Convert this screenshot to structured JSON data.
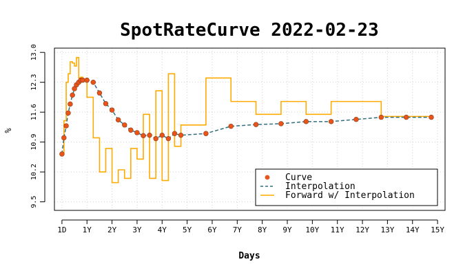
{
  "chart_data": {
    "type": "line",
    "title": "SpotRateCurve 2022-02-23",
    "xlabel": "Days",
    "ylabel": "%",
    "x_unit": "years",
    "xlim": [
      -0.3,
      15.3
    ],
    "ylim": [
      9.3,
      13.1
    ],
    "x_ticks": [
      {
        "value": 0,
        "label": "1D"
      },
      {
        "value": 1,
        "label": "1Y"
      },
      {
        "value": 2,
        "label": "2Y"
      },
      {
        "value": 3,
        "label": "3Y"
      },
      {
        "value": 4,
        "label": "4Y"
      },
      {
        "value": 5,
        "label": "5Y"
      },
      {
        "value": 6,
        "label": "6Y"
      },
      {
        "value": 7,
        "label": "7Y"
      },
      {
        "value": 8,
        "label": "8Y"
      },
      {
        "value": 9,
        "label": "9Y"
      },
      {
        "value": 10,
        "label": "10Y"
      },
      {
        "value": 11,
        "label": "11Y"
      },
      {
        "value": 12,
        "label": "12Y"
      },
      {
        "value": 13,
        "label": "13Y"
      },
      {
        "value": 14,
        "label": "14Y"
      },
      {
        "value": 15,
        "label": "15Y"
      }
    ],
    "y_ticks": [
      {
        "value": 9.5,
        "label": "9.5"
      },
      {
        "value": 10.2,
        "label": "10.2"
      },
      {
        "value": 10.9,
        "label": "10.9"
      },
      {
        "value": 11.6,
        "label": "11.6"
      },
      {
        "value": 12.3,
        "label": "12.3"
      },
      {
        "value": 13.0,
        "label": "13.0"
      }
    ],
    "grid": true,
    "legend_position": "bottom-right",
    "legend": [
      {
        "label": "Curve",
        "kind": "point",
        "color": "#e8541a"
      },
      {
        "label": "Interpolation",
        "kind": "dash",
        "color": "#2f6f7e"
      },
      {
        "label": "Forward w/ Interpolation",
        "kind": "line",
        "color": "#ffaa00"
      }
    ],
    "series": [
      {
        "name": "Curve",
        "kind": "points",
        "color": "#e8541a",
        "points": [
          [
            0.0,
            10.62
          ],
          [
            0.08,
            11.0
          ],
          [
            0.17,
            11.28
          ],
          [
            0.25,
            11.58
          ],
          [
            0.33,
            11.79
          ],
          [
            0.42,
            12.0
          ],
          [
            0.5,
            12.15
          ],
          [
            0.58,
            12.24
          ],
          [
            0.67,
            12.3
          ],
          [
            0.75,
            12.35
          ],
          [
            0.83,
            12.35
          ],
          [
            1.0,
            12.35
          ],
          [
            1.25,
            12.3
          ],
          [
            1.5,
            12.05
          ],
          [
            1.75,
            11.8
          ],
          [
            2.0,
            11.65
          ],
          [
            2.25,
            11.42
          ],
          [
            2.5,
            11.3
          ],
          [
            2.75,
            11.18
          ],
          [
            3.0,
            11.12
          ],
          [
            3.25,
            11.05
          ],
          [
            3.5,
            11.06
          ],
          [
            3.75,
            10.98
          ],
          [
            4.0,
            11.06
          ],
          [
            4.25,
            10.98
          ],
          [
            4.5,
            11.1
          ],
          [
            4.75,
            11.06
          ],
          [
            5.75,
            11.1
          ],
          [
            6.75,
            11.27
          ],
          [
            7.75,
            11.31
          ],
          [
            8.75,
            11.33
          ],
          [
            9.75,
            11.38
          ],
          [
            10.75,
            11.38
          ],
          [
            11.75,
            11.43
          ],
          [
            12.75,
            11.48
          ],
          [
            13.75,
            11.48
          ],
          [
            14.75,
            11.48
          ]
        ]
      },
      {
        "name": "Interpolation",
        "kind": "line",
        "color": "#2f6f7e",
        "points": [
          [
            0.0,
            10.62
          ],
          [
            0.08,
            11.0
          ],
          [
            0.17,
            11.28
          ],
          [
            0.25,
            11.58
          ],
          [
            0.33,
            11.79
          ],
          [
            0.42,
            12.0
          ],
          [
            0.5,
            12.15
          ],
          [
            0.58,
            12.24
          ],
          [
            0.67,
            12.3
          ],
          [
            0.75,
            12.35
          ],
          [
            0.83,
            12.35
          ],
          [
            1.0,
            12.35
          ],
          [
            1.25,
            12.3
          ],
          [
            1.5,
            12.05
          ],
          [
            1.75,
            11.8
          ],
          [
            2.0,
            11.65
          ],
          [
            2.25,
            11.42
          ],
          [
            2.5,
            11.3
          ],
          [
            2.75,
            11.18
          ],
          [
            3.0,
            11.12
          ],
          [
            3.25,
            11.05
          ],
          [
            3.5,
            11.06
          ],
          [
            3.75,
            10.98
          ],
          [
            4.0,
            11.06
          ],
          [
            4.25,
            10.98
          ],
          [
            4.5,
            11.1
          ],
          [
            4.75,
            11.06
          ],
          [
            5.75,
            11.1
          ],
          [
            6.75,
            11.27
          ],
          [
            7.75,
            11.31
          ],
          [
            8.75,
            11.33
          ],
          [
            9.75,
            11.38
          ],
          [
            10.75,
            11.38
          ],
          [
            11.75,
            11.43
          ],
          [
            12.75,
            11.48
          ],
          [
            13.75,
            11.48
          ],
          [
            14.75,
            11.48
          ]
        ]
      },
      {
        "name": "Forward w/ Interpolation",
        "kind": "step",
        "color": "#ffaa00",
        "points": [
          [
            0.0,
            10.62
          ],
          [
            0.08,
            11.4
          ],
          [
            0.17,
            12.3
          ],
          [
            0.25,
            12.5
          ],
          [
            0.33,
            12.78
          ],
          [
            0.42,
            12.75
          ],
          [
            0.5,
            12.68
          ],
          [
            0.58,
            12.88
          ],
          [
            0.67,
            12.4
          ],
          [
            0.75,
            12.42
          ],
          [
            0.83,
            12.35
          ],
          [
            1.0,
            11.95
          ],
          [
            1.25,
            11.0
          ],
          [
            1.5,
            10.2
          ],
          [
            1.75,
            10.75
          ],
          [
            2.0,
            9.95
          ],
          [
            2.25,
            10.25
          ],
          [
            2.5,
            10.05
          ],
          [
            2.75,
            10.75
          ],
          [
            3.0,
            10.5
          ],
          [
            3.25,
            11.55
          ],
          [
            3.5,
            10.05
          ],
          [
            3.75,
            12.1
          ],
          [
            4.0,
            10.0
          ],
          [
            4.25,
            12.5
          ],
          [
            4.5,
            10.8
          ],
          [
            4.75,
            11.3
          ],
          [
            5.75,
            12.4
          ],
          [
            6.75,
            11.85
          ],
          [
            7.75,
            11.55
          ],
          [
            8.75,
            11.85
          ],
          [
            9.75,
            11.55
          ],
          [
            10.75,
            11.85
          ],
          [
            11.75,
            11.85
          ],
          [
            12.75,
            11.5
          ],
          [
            14.75,
            11.5
          ]
        ]
      }
    ]
  }
}
